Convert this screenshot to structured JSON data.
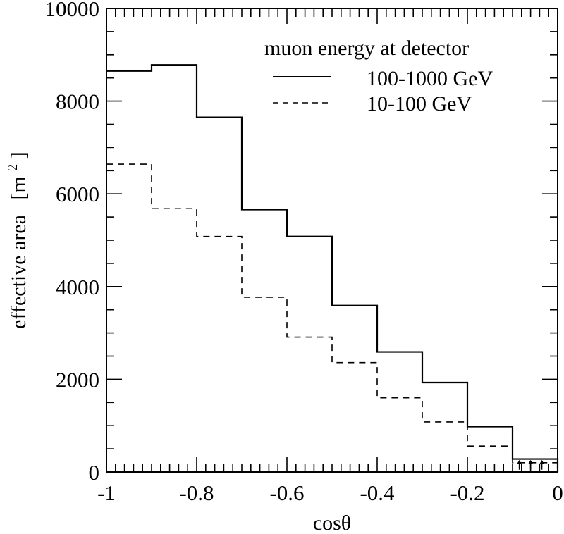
{
  "chart_data": {
    "type": "line",
    "subtype": "step-histogram",
    "title": "",
    "xlabel": "cosθ",
    "ylabel": "effective area",
    "ylabel_unit": "[m",
    "ylabel_unit_sup": "2",
    "ylabel_unit_close": "]",
    "xlim": [
      -1,
      0
    ],
    "ylim": [
      0,
      10000
    ],
    "x_ticks": [
      -1,
      -0.8,
      -0.6,
      -0.4,
      -0.2,
      0
    ],
    "x_tick_labels": [
      "-1",
      "-0.8",
      "-0.6",
      "-0.4",
      "-0.2",
      "0"
    ],
    "x_minor_step": 0.02,
    "y_ticks": [
      0,
      2000,
      4000,
      6000,
      8000,
      10000
    ],
    "y_tick_labels": [
      "0",
      "2000",
      "4000",
      "6000",
      "8000",
      "10000"
    ],
    "y_minor_step": 500,
    "legend_title": "muon energy at detector",
    "legend_position": "top-right",
    "bin_edges": [
      -1,
      -0.9,
      -0.8,
      -0.7,
      -0.6,
      -0.5,
      -0.4,
      -0.3,
      -0.2,
      -0.1,
      0
    ],
    "series": [
      {
        "name": "100-1000 GeV",
        "style": "solid",
        "values": [
          8650,
          8780,
          7650,
          5660,
          5080,
          3590,
          2590,
          1930,
          980,
          280
        ]
      },
      {
        "name": "10-100 GeV",
        "style": "dashed",
        "values": [
          6640,
          5680,
          5080,
          3770,
          2910,
          2360,
          1600,
          1080,
          560,
          200
        ]
      }
    ],
    "annotation": {
      "type": "arrows",
      "x_values": [
        -0.085,
        -0.06,
        -0.035
      ],
      "y_from": 50,
      "y_to": 260
    }
  }
}
